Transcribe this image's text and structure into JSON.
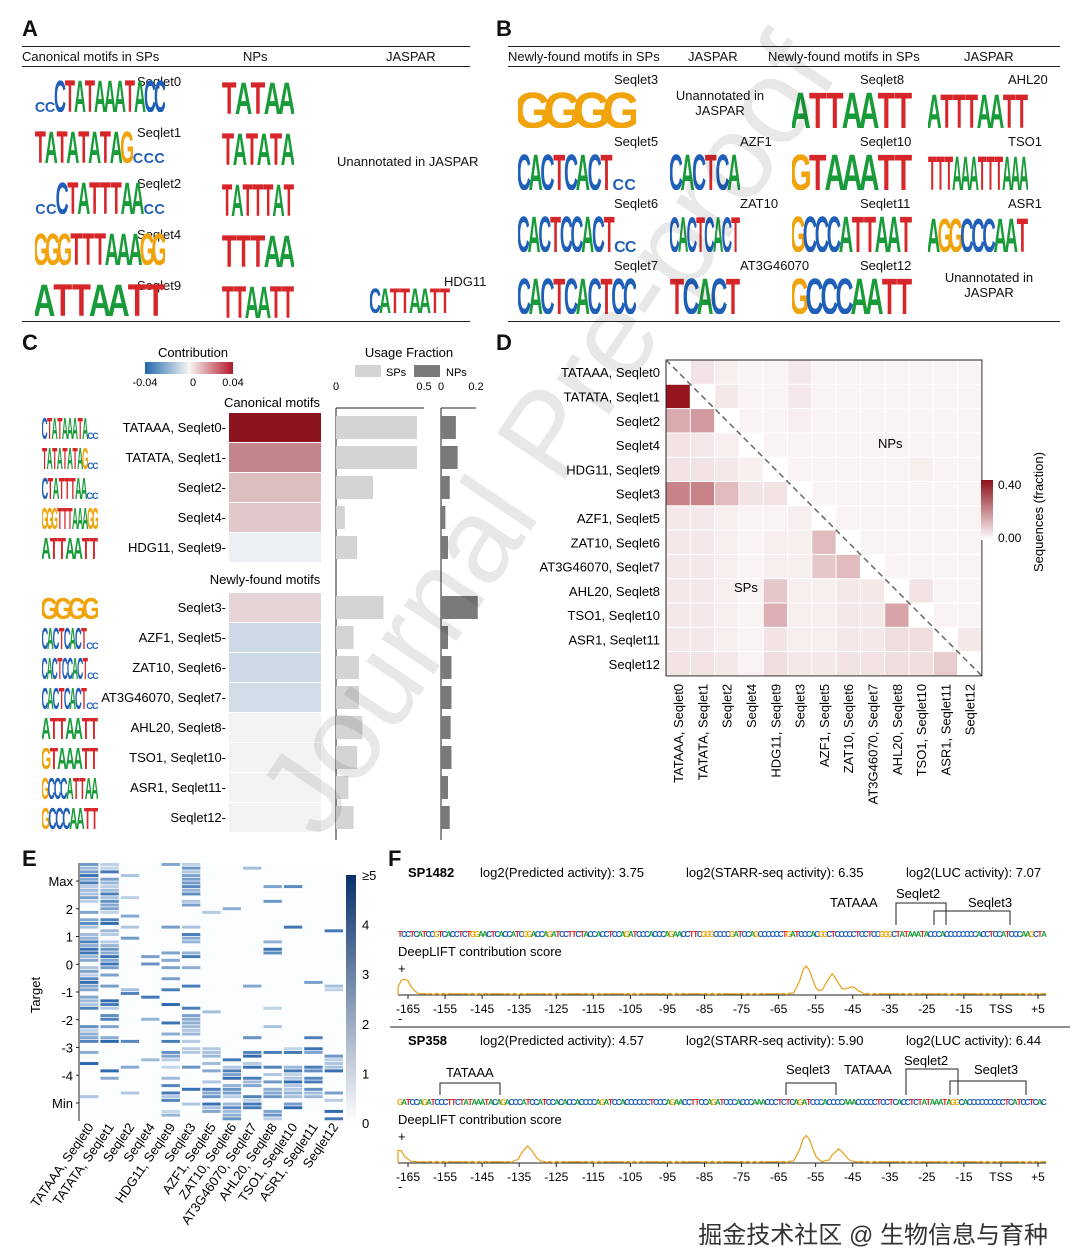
{
  "panel_labels": {
    "A": "A",
    "B": "B",
    "C": "C",
    "D": "D",
    "E": "E",
    "F": "F"
  },
  "panelA": {
    "headers": [
      "Canonical motifs in SPs",
      "NPs",
      "JASPAR"
    ],
    "rows": [
      {
        "name": "Seqlet0",
        "logo_sp": "ccCTATAAATACC",
        "logo_np": "TATAA"
      },
      {
        "name": "Seqlet1",
        "logo_sp": "TATATATAGccc",
        "logo_np": "TATATA"
      },
      {
        "name": "Seqlet2",
        "logo_sp": "ccCTATTTAAcc",
        "logo_np": "TATTTAT"
      },
      {
        "name": "Seqlet4",
        "logo_sp": "GGGTTTAAAGG",
        "logo_np": "TTTAA"
      },
      {
        "name": "Seqlet9",
        "logo_sp": "ATTAATT",
        "logo_np": "TTAATT"
      }
    ],
    "unannotated": "Unannotated in JASPAR",
    "hdg11": "HDG11",
    "hdg11_logo": "CATTAATT"
  },
  "panelB": {
    "headers": [
      "Newly-found motifs in SPs",
      "JASPAR",
      "Newly-found motifs in SPs",
      "JASPAR"
    ],
    "left": [
      {
        "name": "Seqlet3",
        "logo": "GGGG",
        "jaspar": "Unannotated in JASPAR",
        "jlogo": ""
      },
      {
        "name": "Seqlet5",
        "logo": "CACTCACTcc",
        "jaspar": "AZF1",
        "jlogo": "CACTCA"
      },
      {
        "name": "Seqlet6",
        "logo": "CACTCCACTcc",
        "jaspar": "ZAT10",
        "jlogo": "CACTCACT"
      },
      {
        "name": "Seqlet7",
        "logo": "CACTCACTCC",
        "jaspar": "AT3G46070",
        "jlogo": "TCACT"
      }
    ],
    "right": [
      {
        "name": "Seqlet8",
        "logo": "ATTAATT",
        "jaspar": "AHL20",
        "jlogo": "ATTTAATT"
      },
      {
        "name": "Seqlet10",
        "logo": "GTAAATT",
        "jaspar": "TSO1",
        "jlogo": "TTTAAATTTAAA"
      },
      {
        "name": "Seqlet11",
        "logo": "GCCCATTAAT",
        "jaspar": "ASR1",
        "jlogo": "AGGCCCAAT"
      },
      {
        "name": "Seqlet12",
        "logo": "GCCCAATT",
        "jaspar": "Unannotated in JASPAR",
        "jlogo": ""
      }
    ]
  },
  "panelC": {
    "contribution_title": "Contribution",
    "cb_ticks": [
      "-0.04",
      "0",
      "0.04"
    ],
    "usage_title": "Usage Fraction",
    "legend": [
      "SPs",
      "NPs"
    ],
    "sp_axis": [
      "0",
      "0.5"
    ],
    "np_axis": [
      "0",
      "0.2"
    ],
    "section_canonical": "Canonical motifs",
    "section_new": "Newly-found motifs",
    "rows": [
      {
        "label": "TATAAA, Seqlet0",
        "contribution": 0.045,
        "sp": 0.46,
        "np": 0.085,
        "logo": "CTATAAATAcc"
      },
      {
        "label": "TATATA, Seqlet1",
        "contribution": 0.02,
        "sp": 0.46,
        "np": 0.095,
        "logo": "TATATATAGcc"
      },
      {
        "label": "Seqlet2",
        "contribution": 0.01,
        "sp": 0.21,
        "np": 0.05,
        "logo": "CTATTTAAcc"
      },
      {
        "label": "Seqlet4",
        "contribution": 0.008,
        "sp": 0.05,
        "np": 0.025,
        "logo": "GGGTTTAAAGG"
      },
      {
        "label": "HDG11, Seqlet9",
        "contribution": -0.002,
        "sp": 0.12,
        "np": 0.04,
        "logo": "ATTAATT"
      },
      {
        "label": "Seqlet3",
        "contribution": 0.006,
        "sp": 0.27,
        "np": 0.21,
        "logo": "GGGG"
      },
      {
        "label": "AZF1, Seqlet5",
        "contribution": -0.008,
        "sp": 0.1,
        "np": 0.04,
        "logo": "CACTCACTcc"
      },
      {
        "label": "ZAT10, Seqlet6",
        "contribution": -0.008,
        "sp": 0.13,
        "np": 0.06,
        "logo": "CACTCCACTcc"
      },
      {
        "label": "AT3G46070, Seqlet7",
        "contribution": -0.007,
        "sp": 0.13,
        "np": 0.06,
        "logo": "CACTCACTcc"
      },
      {
        "label": "AHL20, Seqlet8",
        "contribution": -0.001,
        "sp": 0.15,
        "np": 0.055,
        "logo": "ATTAATT"
      },
      {
        "label": "TSO1, Seqlet10",
        "contribution": -0.001,
        "sp": 0.12,
        "np": 0.06,
        "logo": "GTAAATT"
      },
      {
        "label": "ASR1, Seqlet11",
        "contribution": -0.001,
        "sp": 0.07,
        "np": 0.04,
        "logo": "GCCCATTAA"
      },
      {
        "label": "Seqlet12",
        "contribution": -0.001,
        "sp": 0.1,
        "np": 0.05,
        "logo": "GCCCAATT"
      }
    ]
  },
  "panelD": {
    "labels": [
      "TATAAA, Seqlet0",
      "TATATA, Seqlet1",
      "Seqlet2",
      "Seqlet4",
      "HDG11, Seqlet9",
      "Seqlet3",
      "AZF1, Seqlet5",
      "ZAT10, Seqlet6",
      "AT3G46070, Seqlet7",
      "AHL20, Seqlet8",
      "TSO1, Seqlet10",
      "ASR1, Seqlet11",
      "Seqlet12"
    ],
    "np_label": "NPs",
    "sp_label": "SPs",
    "cb_title": "Sequences (fraction)",
    "cb_ticks": [
      "0.40",
      "0.00"
    ],
    "matrix": [
      [
        0,
        0.05,
        0.03,
        0.02,
        0.02,
        0.04,
        0.02,
        0.02,
        0.02,
        0.02,
        0.02,
        0.02,
        0.02
      ],
      [
        0.42,
        0,
        0.04,
        0.02,
        0.02,
        0.04,
        0.02,
        0.02,
        0.02,
        0.02,
        0.02,
        0.02,
        0.02
      ],
      [
        0.15,
        0.18,
        0,
        0.02,
        0.02,
        0.03,
        0.02,
        0.02,
        0.02,
        0.02,
        0.02,
        0.02,
        0.02
      ],
      [
        0.05,
        0.04,
        0.03,
        0,
        0.02,
        0.02,
        0.02,
        0.02,
        0.02,
        0.02,
        0.02,
        0.02,
        0.02
      ],
      [
        0.05,
        0.05,
        0.04,
        0.03,
        0,
        0.02,
        0.02,
        0.02,
        0.02,
        0.02,
        0.03,
        0.02,
        0.02
      ],
      [
        0.22,
        0.22,
        0.12,
        0.05,
        0.05,
        0,
        0.02,
        0.02,
        0.02,
        0.02,
        0.02,
        0.02,
        0.02
      ],
      [
        0.04,
        0.04,
        0.03,
        0.02,
        0.02,
        0.03,
        0,
        0.02,
        0.02,
        0.02,
        0.02,
        0.02,
        0.02
      ],
      [
        0.04,
        0.04,
        0.03,
        0.02,
        0.03,
        0.03,
        0.12,
        0,
        0.02,
        0.02,
        0.02,
        0.02,
        0.02
      ],
      [
        0.04,
        0.04,
        0.03,
        0.02,
        0.03,
        0.03,
        0.1,
        0.12,
        0,
        0.02,
        0.02,
        0.02,
        0.02
      ],
      [
        0.04,
        0.04,
        0.03,
        0.02,
        0.1,
        0.03,
        0.03,
        0.04,
        0.04,
        0,
        0.05,
        0.02,
        0.02
      ],
      [
        0.04,
        0.04,
        0.03,
        0.02,
        0.14,
        0.03,
        0.03,
        0.04,
        0.04,
        0.16,
        0,
        0.02,
        0.02
      ],
      [
        0.04,
        0.04,
        0.03,
        0.02,
        0.05,
        0.03,
        0.03,
        0.04,
        0.04,
        0.06,
        0.06,
        0,
        0.04
      ],
      [
        0.05,
        0.05,
        0.04,
        0.02,
        0.06,
        0.04,
        0.04,
        0.05,
        0.05,
        0.06,
        0.06,
        0.09,
        0
      ]
    ]
  },
  "panelE": {
    "ylabel": "Target",
    "yticks": [
      "Max",
      "2",
      "1",
      "0",
      "-1",
      "-2",
      "-3",
      "-4",
      "Min"
    ],
    "xlabels": [
      "TATAAA, Seqlet0",
      "TATATA, Seqlet1",
      "Seqlet2",
      "Seqlet4",
      "HDG11, Seqlet9",
      "Seqlet3",
      "AZF1, Seqlet5",
      "ZAT10, Seqlet6",
      "AT3G46070, Seqlet7",
      "AHL20, Seqlet8",
      "TSO1, Seqlet10",
      "ASR1, Seqlet11",
      "Seqlet12"
    ],
    "cb_ticks": [
      "≥5",
      "4",
      "3",
      "2",
      "1",
      "0"
    ]
  },
  "panelF": {
    "sp1": {
      "id": "SP1482",
      "pred": "log2(Predicted activity): 3.75",
      "starr": "log2(STARR-seq activity): 6.35",
      "luc": "log2(LUC activity): 7.07",
      "annotations": [
        "TATAAA",
        "Seqlet2",
        "Seqlet3"
      ],
      "seq": "TCCTCATCCGTCACCTCTGGAACTCACCATCGGACCAGATCCTTCTACCACCTCCAGATCCCACCCAGAACCTTCGGGCCCCGATCCAGCCCCCCTGATCCCACGGCTCCCCCTCCTCCGGGCTATAAATACCCACCCCCCCCACCTCCATCCCAAGCTA",
      "score_label": "DeepLIFT contribution score",
      "peaks": [
        [
          0.01,
          0.55
        ],
        [
          0.63,
          1.0
        ],
        [
          0.67,
          0.7
        ],
        [
          0.7,
          0.25
        ]
      ]
    },
    "sp2": {
      "id": "SP358",
      "pred": "log2(Predicted activity): 4.57",
      "starr": "log2(STARR-seq activity): 5.90",
      "luc": "log2(LUC activity): 6.44",
      "annotations": [
        "TATAAA",
        "Seqlet3",
        "TATAAA",
        "Seqlet2",
        "Seqlet3"
      ],
      "seq": "GATCCAGATCCCTTCTATAAATACAGACCCATCCATCCACACCACCCCAGATCCACCCCCCTCCCAGAACCTTCCAGATCCCACCCAAACCCTCTCAGATCCCACCCCAAACCCCCTCCTCACCTCTATAAATAGGCACCCCCCCCCTCATCCTCAC",
      "score_label": "DeepLIFT contribution score",
      "peaks": [
        [
          0.0,
          0.45
        ],
        [
          0.2,
          0.55
        ],
        [
          0.63,
          0.95
        ],
        [
          0.68,
          0.45
        ]
      ]
    },
    "x_ticks": [
      "-165",
      "-155",
      "-145",
      "-135",
      "-125",
      "-115",
      "-105",
      "-95",
      "-85",
      "-75",
      "-65",
      "-55",
      "-45",
      "-35",
      "-25",
      "-15",
      "TSS",
      "+5"
    ],
    "plus": "+",
    "minus": "-"
  },
  "watermark": "Journal Pre-proof",
  "footer": "掘金技术社区 @ 生物信息与育种"
}
